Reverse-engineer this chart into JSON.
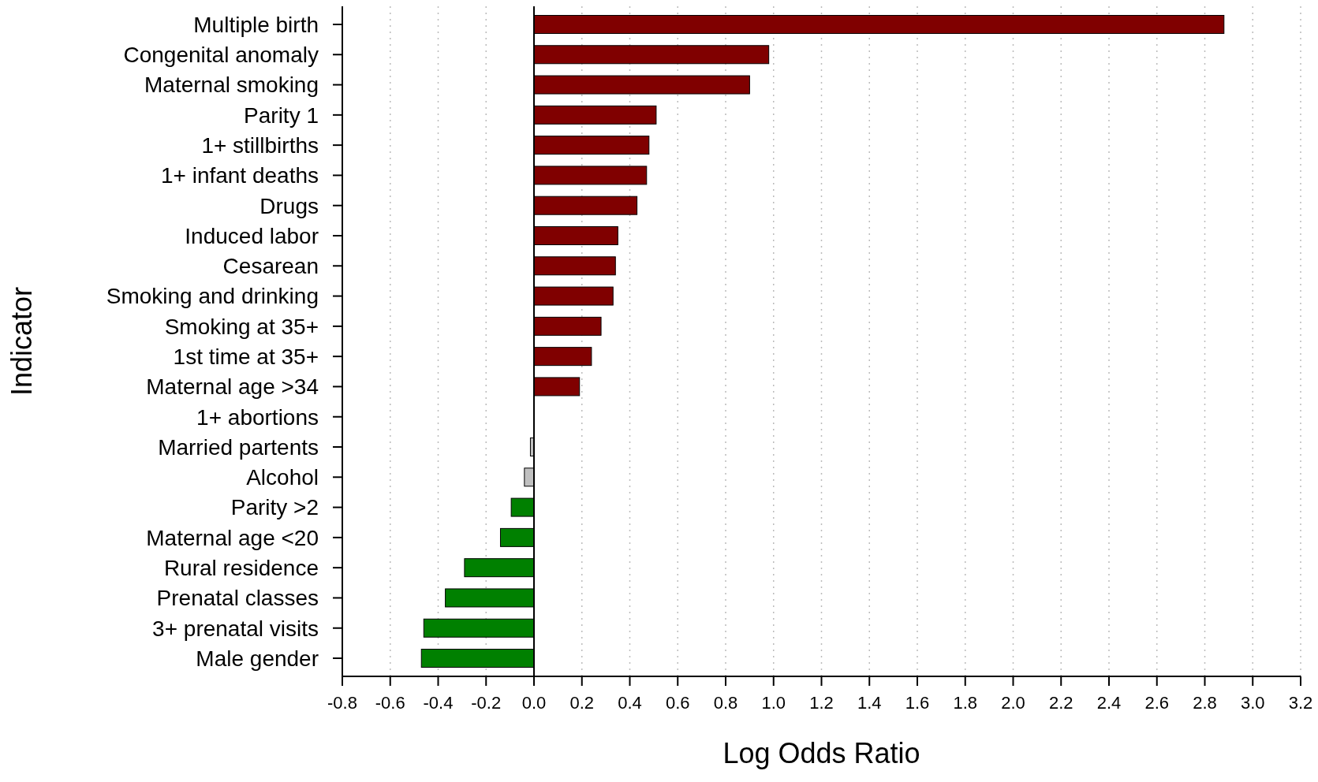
{
  "chart_data": {
    "type": "bar",
    "orientation": "horizontal",
    "xlabel": "Log Odds Ratio",
    "ylabel": "Indicator",
    "categories": [
      "Multiple birth",
      "Congenital anomaly",
      "Maternal smoking",
      "Parity 1",
      "1+ stillbirths",
      "1+ infant deaths",
      "Drugs",
      "Induced labor",
      "Cesarean",
      "Smoking and drinking",
      "Smoking at 35+",
      "1st time at 35+",
      "Maternal age >34",
      "1+ abortions",
      "Married partents",
      "Alcohol",
      "Parity >2",
      "Maternal age <20",
      "Rural residence",
      "Prenatal classes",
      "3+ prenatal visits",
      "Male gender"
    ],
    "values": [
      2.88,
      0.98,
      0.9,
      0.51,
      0.48,
      0.47,
      0.43,
      0.35,
      0.34,
      0.33,
      0.28,
      0.24,
      0.19,
      0,
      -0.015,
      -0.04,
      -0.095,
      -0.14,
      -0.29,
      -0.37,
      -0.46,
      -0.47
    ],
    "colors": [
      "#800000",
      "#800000",
      "#800000",
      "#800000",
      "#800000",
      "#800000",
      "#800000",
      "#800000",
      "#800000",
      "#800000",
      "#800000",
      "#800000",
      "#800000",
      "#c0c0c0",
      "#c0c0c0",
      "#c0c0c0",
      "#008000",
      "#008000",
      "#008000",
      "#008000",
      "#008000",
      "#008000"
    ],
    "xlim": [
      -0.8,
      3.2
    ],
    "xticks": [
      {
        "value": -0.8,
        "label": "-0.8"
      },
      {
        "value": -0.6,
        "label": "-0.6"
      },
      {
        "value": -0.4,
        "label": "-0.4"
      },
      {
        "value": -0.2,
        "label": "-0.2"
      },
      {
        "value": 0,
        "label": "0.0"
      },
      {
        "value": 0.2,
        "label": "0.2"
      },
      {
        "value": 0.4,
        "label": "0.4"
      },
      {
        "value": 0.6,
        "label": "0.6"
      },
      {
        "value": 0.8,
        "label": "0.8"
      },
      {
        "value": 1,
        "label": "1.0"
      },
      {
        "value": 1.2,
        "label": "1.2"
      },
      {
        "value": 1.4,
        "label": "1.4"
      },
      {
        "value": 1.6,
        "label": "1.6"
      },
      {
        "value": 1.8,
        "label": "1.8"
      },
      {
        "value": 2,
        "label": "2.0"
      },
      {
        "value": 2.2,
        "label": "2.2"
      },
      {
        "value": 2.4,
        "label": "2.4"
      },
      {
        "value": 2.6,
        "label": "2.6"
      },
      {
        "value": 2.8,
        "label": "2.8"
      },
      {
        "value": 3,
        "label": "3.0"
      },
      {
        "value": 3.2,
        "label": "3.2"
      }
    ],
    "grid": "x",
    "ref_lines": [
      {
        "axis": "x",
        "value": 0,
        "color": "#000000"
      }
    ]
  }
}
